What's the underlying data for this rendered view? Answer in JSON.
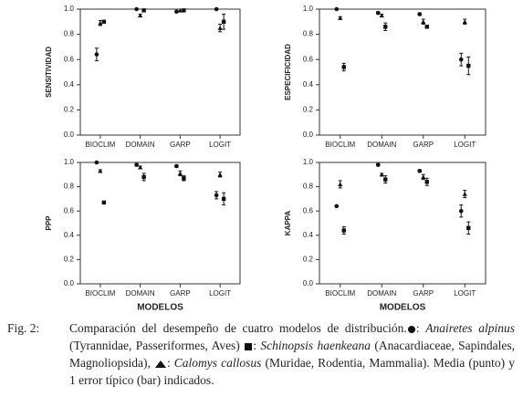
{
  "chart_data": [
    {
      "type": "scatter",
      "ylabel": "SENSITIVIDAD",
      "categories": [
        "BIOCLIM",
        "DOMAIN",
        "GARP",
        "LOGIT"
      ],
      "ylim": [
        0,
        1
      ],
      "yticks": [
        {
          "value": 0,
          "label": "0.0"
        },
        0.2,
        0.4,
        0.6,
        0.8,
        {
          "value": 1,
          "label": "1.0"
        }
      ],
      "series": [
        {
          "marker": "circle",
          "color": "#111111",
          "values": [
            0.64,
            1.0,
            0.98,
            1.0
          ],
          "errors": [
            0.05,
            0.0,
            0.0,
            0.0
          ]
        },
        {
          "marker": "triangle",
          "color": "#111111",
          "values": [
            0.89,
            0.95,
            0.99,
            0.85
          ],
          "errors": [
            0.02,
            0.01,
            0.0,
            0.03
          ]
        },
        {
          "marker": "square",
          "color": "#111111",
          "values": [
            0.9,
            0.99,
            0.99,
            0.9
          ],
          "errors": [
            0.01,
            0.0,
            0.0,
            0.06
          ]
        }
      ]
    },
    {
      "type": "scatter",
      "ylabel": "ESPECIFICIDAD",
      "categories": [
        "BIOCLIM",
        "DOMAIN",
        "GARP",
        "LOGIT"
      ],
      "ylim": [
        0,
        1
      ],
      "yticks": [
        {
          "value": 0,
          "label": "0.0"
        },
        0.2,
        0.4,
        0.6,
        0.8,
        {
          "value": 1,
          "label": "1.0"
        }
      ],
      "series": [
        {
          "marker": "circle",
          "color": "#111111",
          "values": [
            1.0,
            0.97,
            0.96,
            0.6
          ],
          "errors": [
            0.0,
            0.01,
            0.01,
            0.05
          ]
        },
        {
          "marker": "triangle",
          "color": "#111111",
          "values": [
            0.93,
            0.95,
            0.9,
            0.9
          ],
          "errors": [
            0.01,
            0.01,
            0.02,
            0.02
          ]
        },
        {
          "marker": "square",
          "color": "#111111",
          "values": [
            0.54,
            0.86,
            0.86,
            0.55
          ],
          "errors": [
            0.03,
            0.03,
            0.01,
            0.07
          ]
        }
      ]
    },
    {
      "type": "scatter",
      "ylabel": "PPP",
      "xlabel": "MODELOS",
      "categories": [
        "BIOCLIM",
        "DOMAIN",
        "GARP",
        "LOGIT"
      ],
      "ylim": [
        0,
        1
      ],
      "yticks": [
        {
          "value": 0,
          "label": "0.0"
        },
        0.2,
        0.4,
        0.6,
        0.8,
        {
          "value": 1,
          "label": "1.0"
        }
      ],
      "series": [
        {
          "marker": "circle",
          "color": "#111111",
          "values": [
            1.0,
            0.98,
            0.97,
            0.73
          ],
          "errors": [
            0.0,
            0.01,
            0.01,
            0.03
          ]
        },
        {
          "marker": "triangle",
          "color": "#111111",
          "values": [
            0.93,
            0.96,
            0.91,
            0.9
          ],
          "errors": [
            0.01,
            0.01,
            0.02,
            0.02
          ]
        },
        {
          "marker": "square",
          "color": "#111111",
          "values": [
            0.67,
            0.88,
            0.87,
            0.7
          ],
          "errors": [
            0.01,
            0.03,
            0.02,
            0.05
          ]
        }
      ]
    },
    {
      "type": "scatter",
      "ylabel": "KAPPA",
      "xlabel": "MODELOS",
      "categories": [
        "BIOCLIM",
        "DOMAIN",
        "GARP",
        "LOGIT"
      ],
      "ylim": [
        0,
        1
      ],
      "yticks": [
        {
          "value": 0,
          "label": "0.0"
        },
        0.2,
        0.4,
        0.6,
        0.8,
        {
          "value": 1,
          "label": "1.0"
        }
      ],
      "series": [
        {
          "marker": "circle",
          "color": "#111111",
          "values": [
            0.64,
            0.98,
            0.93,
            0.6
          ],
          "errors": [
            0.0,
            0.01,
            0.01,
            0.05
          ]
        },
        {
          "marker": "triangle",
          "color": "#111111",
          "values": [
            0.82,
            0.9,
            0.88,
            0.74
          ],
          "errors": [
            0.03,
            0.01,
            0.02,
            0.03
          ]
        },
        {
          "marker": "square",
          "color": "#111111",
          "values": [
            0.44,
            0.86,
            0.84,
            0.46
          ],
          "errors": [
            0.03,
            0.03,
            0.03,
            0.05
          ]
        }
      ]
    }
  ],
  "caption": {
    "label": "Fig. 2:",
    "parts": [
      "Comparación del desempeño de cuatro modelos de distribución.",
      ": ",
      "Anairetes alpinus",
      " (Tyrannidae, Passeriformes, Aves) ",
      ": ",
      "Schinopsis haenkeana",
      " (Anacardiaceae, Sapindales, Magnoliopsida), ",
      ": ",
      "Calomys callosus",
      " (Muridae, Rodentia, Mammalia). Media (punto) y 1 error típico (bar) indicados."
    ]
  }
}
